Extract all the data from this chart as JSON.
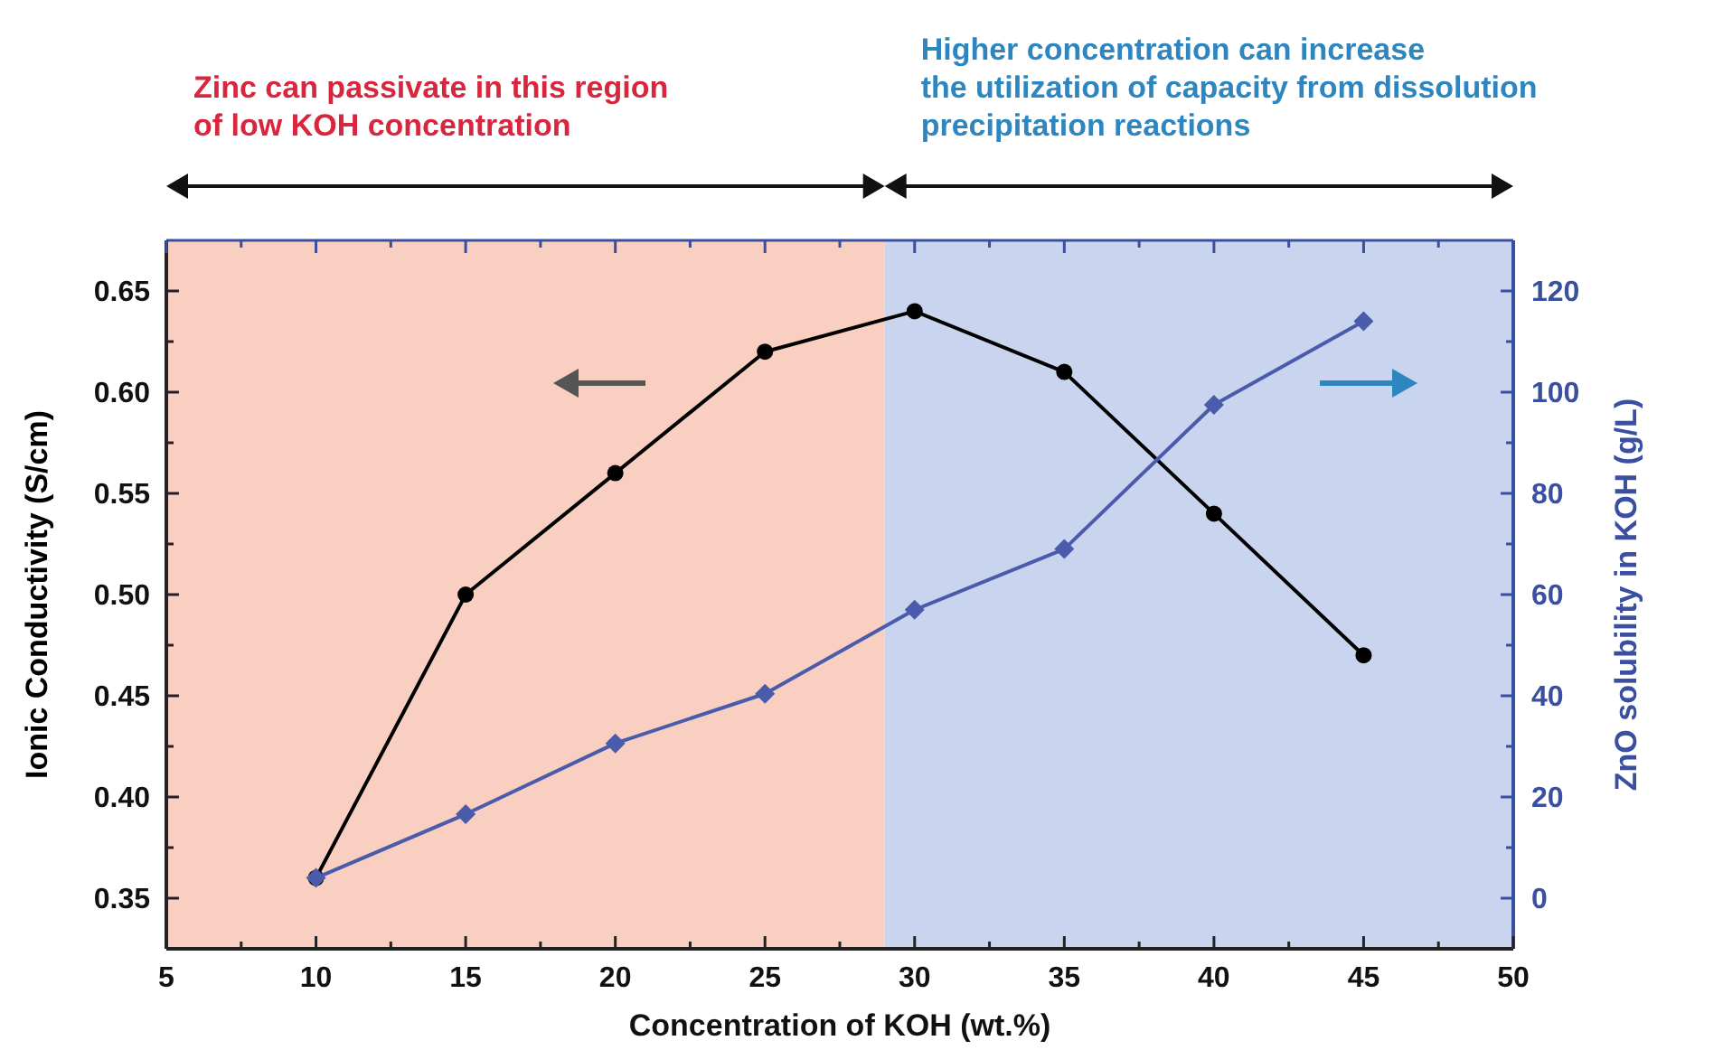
{
  "chart_data": {
    "type": "line",
    "xlabel": "Concentration of KOH (wt.%)",
    "ylabel": "Ionic Conductivity (S/cm)",
    "y2label": "ZnO solubility in KOH (g/L)",
    "x": [
      10,
      15,
      20,
      25,
      30,
      35,
      40,
      45
    ],
    "series": [
      {
        "color": "#000000",
        "marker": "circle",
        "values": [
          0.36,
          0.5,
          0.56,
          0.62,
          0.64,
          0.61,
          0.54,
          0.47
        ]
      },
      {
        "color": "#4a5bab",
        "marker": "diamond",
        "axis": "y2",
        "values": [
          4,
          16.6,
          30.6,
          40.4,
          57,
          69,
          97.5,
          114
        ]
      }
    ],
    "xlim": [
      5,
      50
    ],
    "xticks": [
      5,
      10,
      15,
      20,
      25,
      30,
      35,
      40,
      45,
      50
    ],
    "ylim": [
      0.325,
      0.675
    ],
    "yticks": [
      0.35,
      {
        "value": 0.4,
        "label": "0.40"
      },
      0.45,
      {
        "value": 0.5,
        "label": "0.50"
      },
      0.55,
      {
        "value": 0.6,
        "label": "0.60"
      },
      0.65
    ],
    "y2lim": [
      -10,
      130
    ],
    "y2ticks": [
      0,
      20,
      40,
      60,
      80,
      100,
      120
    ],
    "bands": [
      {
        "axis": "x",
        "from": 5,
        "to": 29,
        "color": "#f8cfc0"
      },
      {
        "axis": "x",
        "from": 29,
        "to": 50,
        "color": "#c9d5ee"
      }
    ],
    "annotations": [
      "Zinc can passivate in this region\nof low KOH concentration",
      "Higher concentration can increase\nthe utilization of capacity from dissolution\nprecipitation reactions"
    ],
    "grid": false
  }
}
